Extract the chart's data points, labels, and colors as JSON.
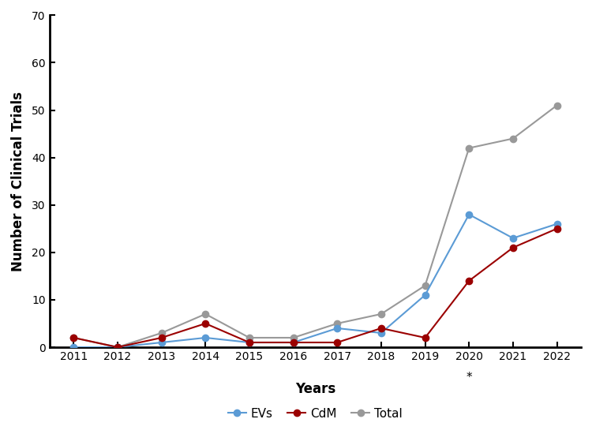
{
  "years": [
    2011,
    2012,
    2013,
    2014,
    2015,
    2016,
    2017,
    2018,
    2019,
    2020,
    2021,
    2022
  ],
  "EVs": [
    0,
    0,
    1,
    2,
    1,
    1,
    4,
    3,
    11,
    28,
    23,
    26
  ],
  "CdM": [
    2,
    0,
    2,
    5,
    1,
    1,
    1,
    4,
    2,
    14,
    21,
    25
  ],
  "Total": [
    2,
    0,
    3,
    7,
    2,
    2,
    5,
    7,
    13,
    42,
    44,
    51
  ],
  "EVs_color": "#5b9bd5",
  "CdM_color": "#9b0000",
  "Total_color": "#999999",
  "xlabel": "Years",
  "ylabel": "Number of Clinical Trials",
  "ylim": [
    0,
    70
  ],
  "yticks": [
    0,
    10,
    20,
    30,
    40,
    50,
    60,
    70
  ],
  "star_year": 2020,
  "star_label": "*",
  "legend_labels": [
    "EVs",
    "CdM",
    "Total"
  ],
  "marker": "o",
  "markersize": 6,
  "linewidth": 1.5,
  "background_color": "#ffffff",
  "axis_fontsize": 12,
  "tick_fontsize": 10,
  "legend_fontsize": 11
}
